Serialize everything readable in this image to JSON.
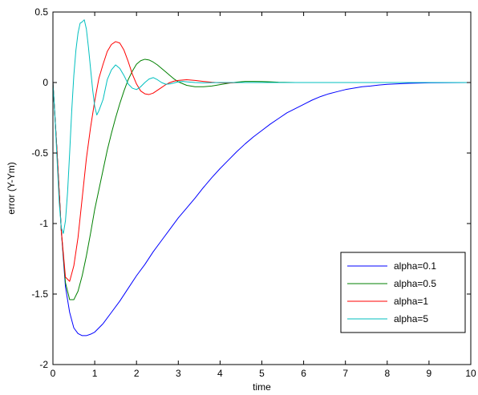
{
  "chart_data": {
    "type": "line",
    "title": "",
    "xlabel": "time",
    "ylabel": "error (Y-Ym)",
    "xlim": [
      0,
      10
    ],
    "ylim": [
      -2,
      0.5
    ],
    "x_ticks": [
      0,
      1,
      2,
      3,
      4,
      5,
      6,
      7,
      8,
      9,
      10
    ],
    "x_tick_labels": [
      "0",
      "1",
      "2",
      "3",
      "4",
      "5",
      "6",
      "7",
      "8",
      "9",
      "10"
    ],
    "y_ticks": [
      -2,
      -1.5,
      -1,
      -0.5,
      0,
      0.5
    ],
    "y_tick_labels": [
      "-2",
      "-1.5",
      "-1",
      "-0.5",
      "0",
      "0.5"
    ],
    "grid": false,
    "legend_position": "bottom-right",
    "series": [
      {
        "name": "alpha=0.1",
        "color": "#0000ff",
        "points": [
          [
            0,
            0
          ],
          [
            0.1,
            -0.5
          ],
          [
            0.2,
            -1.05
          ],
          [
            0.3,
            -1.45
          ],
          [
            0.4,
            -1.63
          ],
          [
            0.5,
            -1.74
          ],
          [
            0.6,
            -1.78
          ],
          [
            0.7,
            -1.795
          ],
          [
            0.8,
            -1.795
          ],
          [
            0.9,
            -1.785
          ],
          [
            1.0,
            -1.77
          ],
          [
            1.1,
            -1.74
          ],
          [
            1.2,
            -1.71
          ],
          [
            1.4,
            -1.63
          ],
          [
            1.6,
            -1.55
          ],
          [
            1.8,
            -1.46
          ],
          [
            2.0,
            -1.37
          ],
          [
            2.2,
            -1.29
          ],
          [
            2.4,
            -1.2
          ],
          [
            2.6,
            -1.12
          ],
          [
            2.8,
            -1.04
          ],
          [
            3.0,
            -0.96
          ],
          [
            3.2,
            -0.89
          ],
          [
            3.4,
            -0.82
          ],
          [
            3.6,
            -0.745
          ],
          [
            3.8,
            -0.675
          ],
          [
            4.0,
            -0.61
          ],
          [
            4.2,
            -0.55
          ],
          [
            4.4,
            -0.49
          ],
          [
            4.6,
            -0.435
          ],
          [
            4.8,
            -0.385
          ],
          [
            5.0,
            -0.34
          ],
          [
            5.2,
            -0.295
          ],
          [
            5.4,
            -0.255
          ],
          [
            5.6,
            -0.215
          ],
          [
            5.8,
            -0.185
          ],
          [
            6.0,
            -0.155
          ],
          [
            6.2,
            -0.125
          ],
          [
            6.4,
            -0.1
          ],
          [
            6.6,
            -0.08
          ],
          [
            6.8,
            -0.065
          ],
          [
            7.0,
            -0.05
          ],
          [
            7.2,
            -0.04
          ],
          [
            7.4,
            -0.03
          ],
          [
            7.6,
            -0.025
          ],
          [
            7.8,
            -0.018
          ],
          [
            8.0,
            -0.013
          ],
          [
            8.2,
            -0.01
          ],
          [
            8.5,
            -0.006
          ],
          [
            9.0,
            -0.002
          ],
          [
            10.0,
            0
          ]
        ]
      },
      {
        "name": "alpha=0.5",
        "color": "#008000",
        "points": [
          [
            0,
            0
          ],
          [
            0.1,
            -0.5
          ],
          [
            0.2,
            -1.05
          ],
          [
            0.3,
            -1.42
          ],
          [
            0.4,
            -1.54
          ],
          [
            0.5,
            -1.54
          ],
          [
            0.6,
            -1.48
          ],
          [
            0.7,
            -1.37
          ],
          [
            0.8,
            -1.23
          ],
          [
            0.9,
            -1.07
          ],
          [
            1.0,
            -0.9
          ],
          [
            1.1,
            -0.76
          ],
          [
            1.2,
            -0.62
          ],
          [
            1.3,
            -0.48
          ],
          [
            1.4,
            -0.36
          ],
          [
            1.5,
            -0.25
          ],
          [
            1.6,
            -0.15
          ],
          [
            1.7,
            -0.06
          ],
          [
            1.8,
            0.02
          ],
          [
            1.9,
            0.08
          ],
          [
            2.0,
            0.13
          ],
          [
            2.1,
            0.155
          ],
          [
            2.2,
            0.165
          ],
          [
            2.3,
            0.16
          ],
          [
            2.4,
            0.145
          ],
          [
            2.5,
            0.125
          ],
          [
            2.6,
            0.1
          ],
          [
            2.7,
            0.075
          ],
          [
            2.8,
            0.05
          ],
          [
            2.9,
            0.025
          ],
          [
            3.0,
            0.005
          ],
          [
            3.2,
            -0.02
          ],
          [
            3.4,
            -0.03
          ],
          [
            3.6,
            -0.03
          ],
          [
            3.8,
            -0.025
          ],
          [
            4.0,
            -0.015
          ],
          [
            4.2,
            -0.005
          ],
          [
            4.4,
            0.003
          ],
          [
            4.6,
            0.008
          ],
          [
            4.8,
            0.008
          ],
          [
            5.0,
            0.007
          ],
          [
            5.2,
            0.005
          ],
          [
            5.4,
            0.002
          ],
          [
            5.8,
            0
          ],
          [
            10.0,
            0
          ]
        ]
      },
      {
        "name": "alpha=1",
        "color": "#ff0000",
        "points": [
          [
            0,
            0
          ],
          [
            0.1,
            -0.5
          ],
          [
            0.2,
            -1.05
          ],
          [
            0.3,
            -1.38
          ],
          [
            0.4,
            -1.41
          ],
          [
            0.5,
            -1.3
          ],
          [
            0.6,
            -1.1
          ],
          [
            0.7,
            -0.82
          ],
          [
            0.8,
            -0.54
          ],
          [
            0.9,
            -0.32
          ],
          [
            1.0,
            -0.13
          ],
          [
            1.1,
            0.03
          ],
          [
            1.2,
            0.13
          ],
          [
            1.3,
            0.22
          ],
          [
            1.4,
            0.27
          ],
          [
            1.5,
            0.29
          ],
          [
            1.6,
            0.28
          ],
          [
            1.7,
            0.23
          ],
          [
            1.8,
            0.15
          ],
          [
            1.9,
            0.06
          ],
          [
            2.0,
            -0.01
          ],
          [
            2.1,
            -0.06
          ],
          [
            2.2,
            -0.08
          ],
          [
            2.3,
            -0.085
          ],
          [
            2.4,
            -0.075
          ],
          [
            2.5,
            -0.055
          ],
          [
            2.6,
            -0.035
          ],
          [
            2.7,
            -0.015
          ],
          [
            2.8,
            0.0
          ],
          [
            2.9,
            0.01
          ],
          [
            3.0,
            0.015
          ],
          [
            3.2,
            0.02
          ],
          [
            3.4,
            0.015
          ],
          [
            3.6,
            0.008
          ],
          [
            3.8,
            0.002
          ],
          [
            4.0,
            -0.002
          ],
          [
            4.2,
            -0.003
          ],
          [
            4.5,
            0
          ],
          [
            10.0,
            0
          ]
        ]
      },
      {
        "name": "alpha=5",
        "color": "#00bfbf",
        "points": [
          [
            0,
            0
          ],
          [
            0.05,
            -0.25
          ],
          [
            0.1,
            -0.55
          ],
          [
            0.15,
            -0.85
          ],
          [
            0.2,
            -1.03
          ],
          [
            0.25,
            -1.07
          ],
          [
            0.3,
            -0.98
          ],
          [
            0.35,
            -0.78
          ],
          [
            0.4,
            -0.5
          ],
          [
            0.45,
            -0.2
          ],
          [
            0.5,
            0.05
          ],
          [
            0.55,
            0.23
          ],
          [
            0.6,
            0.35
          ],
          [
            0.65,
            0.42
          ],
          [
            0.7,
            0.43
          ],
          [
            0.75,
            0.445
          ],
          [
            0.8,
            0.38
          ],
          [
            0.85,
            0.25
          ],
          [
            0.9,
            0.1
          ],
          [
            0.95,
            -0.05
          ],
          [
            1.0,
            -0.17
          ],
          [
            1.05,
            -0.23
          ],
          [
            1.1,
            -0.2
          ],
          [
            1.2,
            -0.12
          ],
          [
            1.3,
            0.02
          ],
          [
            1.4,
            0.09
          ],
          [
            1.5,
            0.125
          ],
          [
            1.6,
            0.1
          ],
          [
            1.7,
            0.05
          ],
          [
            1.8,
            -0.01
          ],
          [
            1.9,
            -0.04
          ],
          [
            2.0,
            -0.05
          ],
          [
            2.1,
            -0.03
          ],
          [
            2.2,
            0.0
          ],
          [
            2.3,
            0.025
          ],
          [
            2.4,
            0.035
          ],
          [
            2.5,
            0.02
          ],
          [
            2.6,
            0.0
          ],
          [
            2.7,
            -0.012
          ],
          [
            2.8,
            -0.01
          ],
          [
            2.9,
            -0.003
          ],
          [
            3.0,
            0.005
          ],
          [
            3.1,
            0.008
          ],
          [
            3.2,
            0.005
          ],
          [
            3.4,
            0.0
          ],
          [
            3.6,
            -0.002
          ],
          [
            4.0,
            0
          ],
          [
            10.0,
            0
          ]
        ]
      }
    ]
  }
}
